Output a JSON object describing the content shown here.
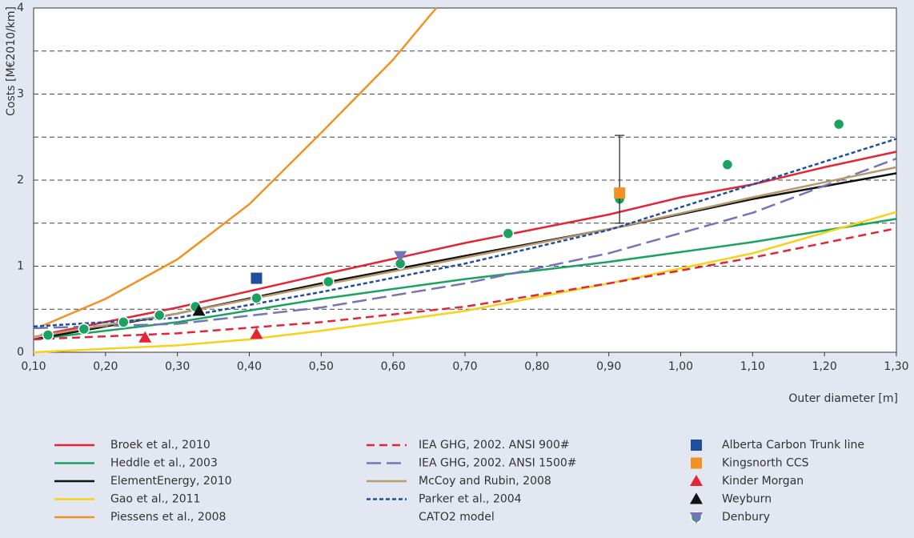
{
  "chart_data": {
    "type": "line",
    "xlabel": "Outer diameter [m]",
    "ylabel": "Costs [M€2010/km]",
    "xlim": [
      0.1,
      1.3
    ],
    "xticks": [
      {
        "value": 0.1,
        "label": "0,10"
      },
      {
        "value": 0.2,
        "label": "0,20"
      },
      {
        "value": 0.3,
        "label": "0,30"
      },
      {
        "value": 0.4,
        "label": "0,40"
      },
      {
        "value": 0.5,
        "label": "0,50"
      },
      {
        "value": 0.6,
        "label": "0,60"
      },
      {
        "value": 0.7,
        "label": "0,70"
      },
      {
        "value": 0.8,
        "label": "0,80"
      },
      {
        "value": 0.9,
        "label": "0,90"
      },
      {
        "value": 1.0,
        "label": "1,00"
      },
      {
        "value": 1.1,
        "label": "1,10"
      },
      {
        "value": 1.2,
        "label": "1,20"
      },
      {
        "value": 1.3,
        "label": "1,30"
      }
    ],
    "ylim": [
      0,
      4
    ],
    "yticks": [
      0,
      1,
      2,
      3,
      4
    ],
    "minor_yticks": [
      0.5,
      1.5,
      2.5,
      3.5
    ],
    "grid": true,
    "series": [
      {
        "name": "Broek et al., 2010",
        "color": "#e32636",
        "style": "solid",
        "x": [
          0.11,
          0.3,
          0.5,
          0.7,
          0.9,
          1.0,
          1.1,
          1.2,
          1.3
        ],
        "values": [
          0.2,
          0.52,
          0.9,
          1.27,
          1.6,
          1.8,
          1.95,
          2.15,
          2.33
        ]
      },
      {
        "name": "Heddle et al., 2003",
        "color": "#1aa260",
        "style": "solid",
        "x": [
          0.1,
          0.3,
          0.5,
          0.7,
          0.9,
          1.1,
          1.3
        ],
        "values": [
          0.15,
          0.35,
          0.62,
          0.85,
          1.05,
          1.28,
          1.55
        ]
      },
      {
        "name": "ElementEnergy, 2010",
        "color": "#111111",
        "style": "solid",
        "x": [
          0.1,
          0.3,
          0.5,
          0.7,
          0.9,
          1.1,
          1.3
        ],
        "values": [
          0.15,
          0.45,
          0.8,
          1.12,
          1.43,
          1.78,
          2.08
        ]
      },
      {
        "name": "Gao et al., 2011",
        "color": "#f5d31a",
        "style": "solid",
        "x": [
          0.1,
          0.3,
          0.4,
          0.5,
          0.7,
          0.9,
          1.1,
          1.3
        ],
        "values": [
          0.0,
          0.08,
          0.15,
          0.25,
          0.48,
          0.8,
          1.15,
          1.63
        ]
      },
      {
        "name": "Piessens et al., 2008",
        "color": "#f39224",
        "style": "solid",
        "x": [
          0.11,
          0.2,
          0.3,
          0.4,
          0.5,
          0.6,
          0.66
        ],
        "values": [
          0.3,
          0.62,
          1.08,
          1.72,
          2.55,
          3.4,
          4.0
        ]
      },
      {
        "name": "IEA GHG, 2002. ANSI 900#",
        "color": "#e32636",
        "style": "dashed",
        "x": [
          0.1,
          0.3,
          0.5,
          0.7,
          0.9,
          1.1,
          1.3
        ],
        "values": [
          0.15,
          0.22,
          0.35,
          0.53,
          0.8,
          1.1,
          1.44
        ]
      },
      {
        "name": "IEA GHG, 2002. ANSI 1500#",
        "color": "#7474b8",
        "style": "longdash",
        "x": [
          0.1,
          0.3,
          0.5,
          0.7,
          0.9,
          1.1,
          1.3
        ],
        "values": [
          0.28,
          0.33,
          0.52,
          0.8,
          1.15,
          1.62,
          2.25
        ]
      },
      {
        "name": "McCoy and Rubin, 2008",
        "color": "#b89a6e",
        "style": "solid",
        "x": [
          0.1,
          0.3,
          0.5,
          0.7,
          0.9,
          1.1,
          1.3
        ],
        "values": [
          0.18,
          0.45,
          0.78,
          1.1,
          1.43,
          1.8,
          2.15
        ]
      },
      {
        "name": "Parker et al., 2004",
        "color": "#1f4ea1",
        "style": "dotted",
        "x": [
          0.1,
          0.3,
          0.5,
          0.7,
          0.9,
          1.1,
          1.3
        ],
        "values": [
          0.3,
          0.4,
          0.7,
          1.03,
          1.42,
          1.95,
          2.48
        ]
      },
      {
        "name": "CATO2 model",
        "color": "#1aa260",
        "marker": "circle",
        "x": [
          0.12,
          0.17,
          0.225,
          0.275,
          0.325,
          0.41,
          0.51,
          0.61,
          0.76,
          0.915,
          1.065,
          1.22
        ],
        "values": [
          0.2,
          0.27,
          0.35,
          0.43,
          0.53,
          0.63,
          0.82,
          1.03,
          1.38,
          1.78,
          2.18,
          2.65
        ]
      },
      {
        "name": "Alberta Carbon Trunk line",
        "color": "#1f4ea1",
        "marker": "square",
        "x": [
          0.41
        ],
        "values": [
          0.86
        ]
      },
      {
        "name": "Kingsnorth CCS",
        "color": "#f39224",
        "marker": "square",
        "x": [
          0.915
        ],
        "values": [
          1.85
        ],
        "error_range": [
          1.5,
          2.52
        ]
      },
      {
        "name": "Kinder Morgan",
        "color": "#e32636",
        "marker": "triangle",
        "x": [
          0.255,
          0.41
        ],
        "values": [
          0.17,
          0.21
        ]
      },
      {
        "name": "Weyburn",
        "color": "#111111",
        "marker": "triangle",
        "x": [
          0.33
        ],
        "values": [
          0.48
        ]
      },
      {
        "name": "Denbury",
        "color": "#7474b8",
        "marker": "triangle-down",
        "x": [
          0.61
        ],
        "values": [
          1.12
        ]
      }
    ]
  }
}
